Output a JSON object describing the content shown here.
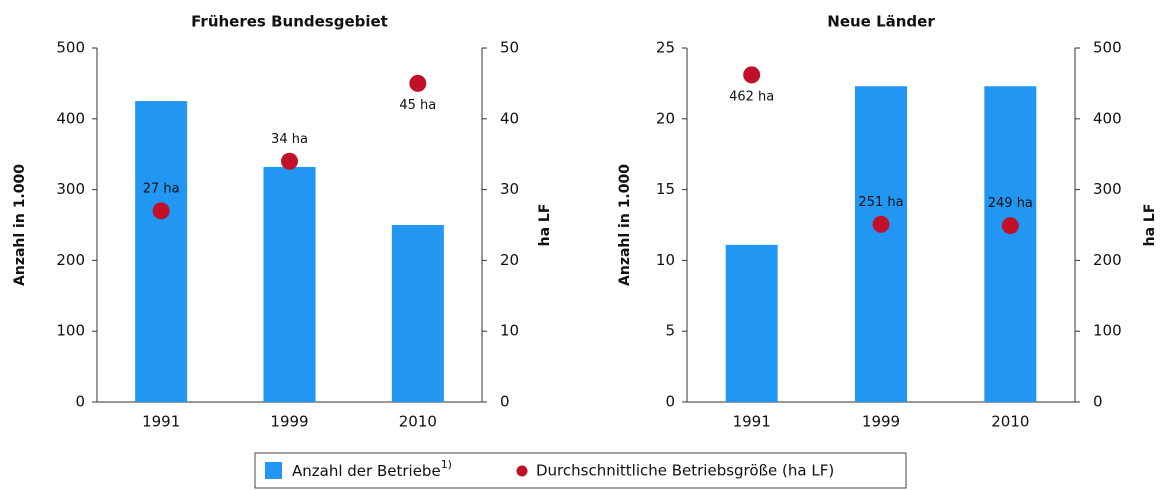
{
  "chart_data": [
    {
      "type": "bar",
      "title": "Früheres Bundesgebiet",
      "ylabel": "Anzahl in 1.000",
      "y2label": "ha LF",
      "categories": [
        "1991",
        "1999",
        "2010"
      ],
      "series": [
        {
          "type": "bar",
          "color": "#2196f3",
          "values": [
            425,
            332,
            250
          ]
        },
        {
          "type": "scatter",
          "axis": "y2",
          "color": "#c0102a",
          "values": [
            27,
            34,
            45
          ],
          "value_labels": [
            "27 ha",
            "34 ha",
            "45 ha"
          ]
        }
      ],
      "ylim": [
        0,
        500
      ],
      "yticks": [
        0,
        100,
        200,
        300,
        400,
        500
      ],
      "y2lim": [
        0,
        50
      ],
      "y2ticks": [
        0,
        10,
        20,
        30,
        40,
        50
      ]
    },
    {
      "type": "bar",
      "title": "Neue Länder",
      "ylabel": "Anzahl in 1.000",
      "y2label": "ha LF",
      "categories": [
        "1991",
        "1999",
        "2010"
      ],
      "series": [
        {
          "type": "bar",
          "color": "#2196f3",
          "values": [
            11.1,
            22.3,
            22.3
          ]
        },
        {
          "type": "scatter",
          "axis": "y2",
          "color": "#c0102a",
          "values": [
            462,
            251,
            249
          ],
          "value_labels": [
            "462 ha",
            "251 ha",
            "249 ha"
          ]
        }
      ],
      "ylim": [
        0,
        25
      ],
      "yticks": [
        0,
        5,
        10,
        15,
        20,
        25
      ],
      "y2lim": [
        0,
        500
      ],
      "y2ticks": [
        0,
        100,
        200,
        300,
        400,
        500
      ]
    }
  ],
  "legend": [
    {
      "label": "Anzahl der Betriebe",
      "footnote": "1)"
    },
    {
      "label": "Durchschnittliche Betriebsgröße (ha LF)"
    }
  ]
}
